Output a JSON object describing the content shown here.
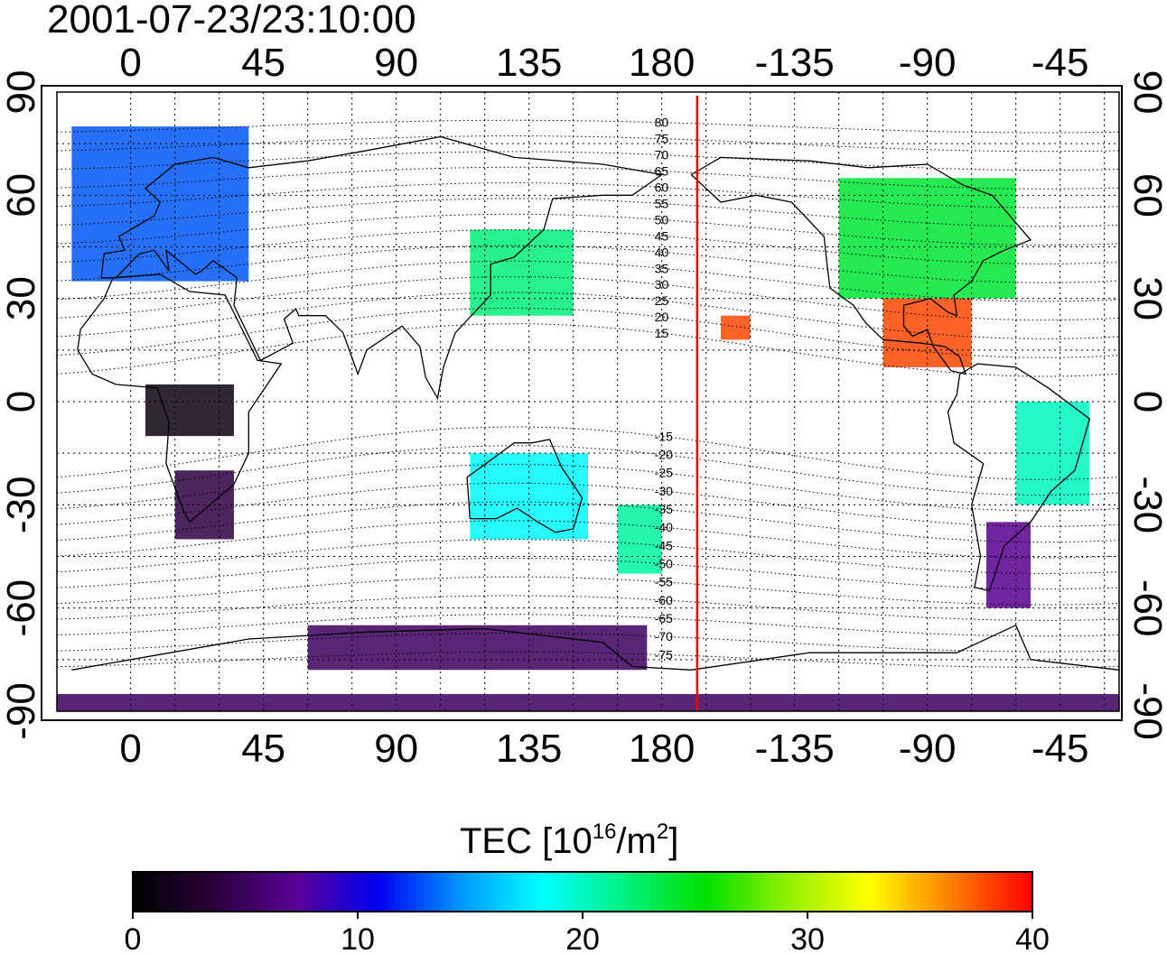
{
  "title": "2001-07-23/23:10:00",
  "axes": {
    "top_lon_ticks": [
      "0",
      "45",
      "90",
      "135",
      "180",
      "-135",
      "-90",
      "-45"
    ],
    "bottom_lon_ticks": [
      "0",
      "45",
      "90",
      "135",
      "180",
      "-135",
      "-90",
      "-45"
    ],
    "left_lat_ticks": [
      "90",
      "60",
      "30",
      "0",
      "-30",
      "-60",
      "-90"
    ],
    "right_lat_ticks": [
      "90",
      "60",
      "30",
      "0",
      "-30",
      "-60",
      "-90"
    ]
  },
  "map": {
    "lon_range": [
      -25,
      335
    ],
    "lat_range": [
      -90,
      90
    ],
    "gridline_lons": [
      0,
      15,
      30,
      45,
      60,
      75,
      90,
      105,
      120,
      135,
      150,
      165,
      180,
      195,
      210,
      225,
      240,
      255,
      270,
      285,
      300,
      315,
      330
    ],
    "gridline_lats": [
      -75,
      -60,
      -45,
      -30,
      -15,
      0,
      15,
      30,
      45,
      60,
      75
    ],
    "midnight_meridian_lon": 192,
    "midnight_meridian_color": "#ee0000",
    "magnetic_latitude_labels": [
      "80",
      "75",
      "70",
      "65",
      "60",
      "55",
      "50",
      "45",
      "40",
      "35",
      "30",
      "25",
      "20",
      "15",
      "-15",
      "-20",
      "-25",
      "-30",
      "-35",
      "-40",
      "-45",
      "-50",
      "-55",
      "-60",
      "-65",
      "-70",
      "-75"
    ]
  },
  "tec_regions": [
    {
      "name": "europe",
      "lon": [
        -20,
        40
      ],
      "lat": [
        35,
        80
      ],
      "tec": 13
    },
    {
      "name": "north-america",
      "lon": [
        240,
        300
      ],
      "lat": [
        30,
        65
      ],
      "tec": 24
    },
    {
      "name": "gulf-mexico",
      "lon": [
        255,
        285
      ],
      "lat": [
        10,
        30
      ],
      "tec": 38
    },
    {
      "name": "japan-east-asia",
      "lon": [
        115,
        150
      ],
      "lat": [
        25,
        50
      ],
      "tec": 22
    },
    {
      "name": "south-africa",
      "lon": [
        15,
        35
      ],
      "lat": [
        -40,
        -20
      ],
      "tec": 4
    },
    {
      "name": "equatorial-africa",
      "lon": [
        5,
        35
      ],
      "lat": [
        -10,
        5
      ],
      "tec": 1
    },
    {
      "name": "australia",
      "lon": [
        115,
        155
      ],
      "lat": [
        -40,
        -15
      ],
      "tec": 18
    },
    {
      "name": "new-zealand",
      "lon": [
        165,
        180
      ],
      "lat": [
        -50,
        -30
      ],
      "tec": 21
    },
    {
      "name": "south-america-east",
      "lon": [
        300,
        325
      ],
      "lat": [
        -30,
        0
      ],
      "tec": 20
    },
    {
      "name": "south-america-south",
      "lon": [
        290,
        305
      ],
      "lat": [
        -60,
        -35
      ],
      "tec": 7
    },
    {
      "name": "hawaii",
      "lon": [
        200,
        210
      ],
      "lat": [
        18,
        25
      ],
      "tec": 38
    },
    {
      "name": "antarctica-coast",
      "lon": [
        60,
        175
      ],
      "lat": [
        -78,
        -65
      ],
      "tec": 5
    },
    {
      "name": "antarctica-south",
      "lon": [
        -25,
        335
      ],
      "lat": [
        -90,
        -85
      ],
      "tec": 5
    }
  ],
  "colorbar": {
    "label_main": "TEC  [10",
    "label_exp": "16",
    "label_unit": "/m",
    "label_exp2": "2",
    "label_close": "]",
    "min": 0,
    "max": 40,
    "ticks": [
      "0",
      "10",
      "20",
      "30",
      "40"
    ],
    "colors": [
      "#000000",
      "#2a003a",
      "#5a0096",
      "#0000ee",
      "#0096ff",
      "#00ffff",
      "#00f080",
      "#00e000",
      "#90f000",
      "#ffff00",
      "#ff8000",
      "#ff0000"
    ]
  }
}
